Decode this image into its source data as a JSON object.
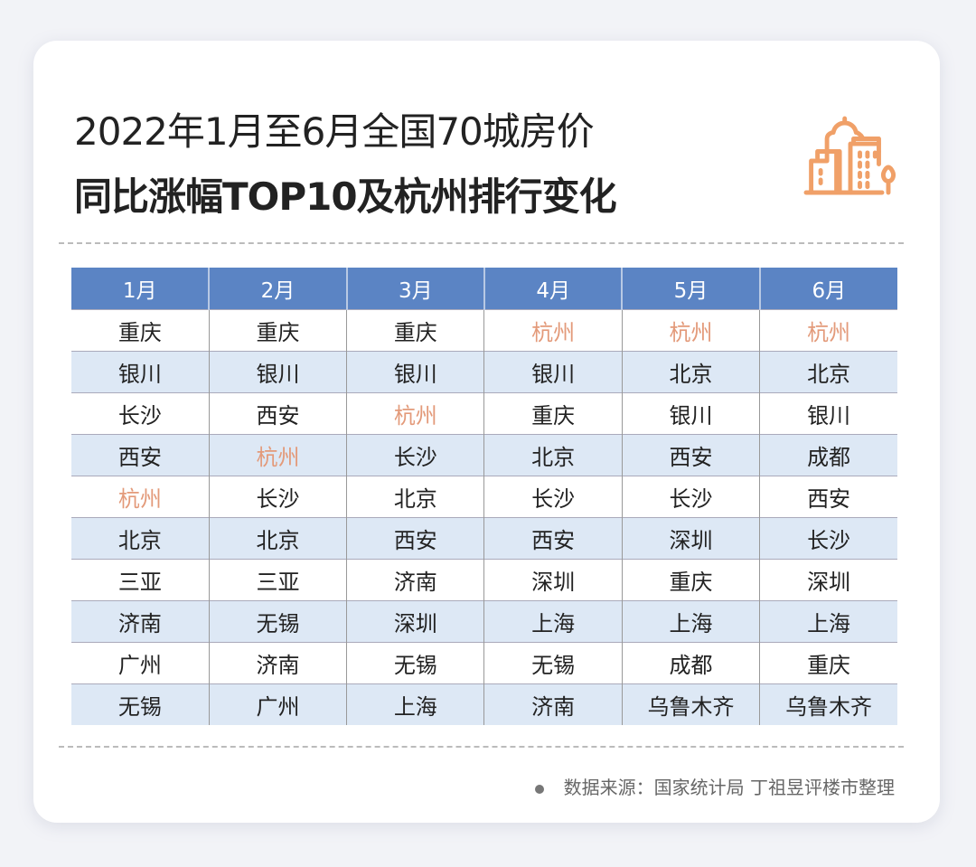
{
  "title_line1": "2022年1月至6月全国70城房价",
  "title_line2": "同比涨幅TOP10及杭州排行变化",
  "icon": "city-buildings-icon",
  "watermark": "丁祖昱评楼市",
  "highlight_city": "杭州",
  "colors": {
    "header": "#5b84c4",
    "alt_row": "#dde8f5",
    "highlight": "#e39a7a",
    "icon": "#f0a068"
  },
  "table": {
    "headers": [
      "1月",
      "2月",
      "3月",
      "4月",
      "5月",
      "6月"
    ],
    "rows": [
      [
        "重庆",
        "重庆",
        "重庆",
        "杭州",
        "杭州",
        "杭州"
      ],
      [
        "银川",
        "银川",
        "银川",
        "银川",
        "北京",
        "北京"
      ],
      [
        "长沙",
        "西安",
        "杭州",
        "重庆",
        "银川",
        "银川"
      ],
      [
        "西安",
        "杭州",
        "长沙",
        "北京",
        "西安",
        "成都"
      ],
      [
        "杭州",
        "长沙",
        "北京",
        "长沙",
        "长沙",
        "西安"
      ],
      [
        "北京",
        "北京",
        "西安",
        "西安",
        "深圳",
        "长沙"
      ],
      [
        "三亚",
        "三亚",
        "济南",
        "深圳",
        "重庆",
        "深圳"
      ],
      [
        "济南",
        "无锡",
        "深圳",
        "上海",
        "上海",
        "上海"
      ],
      [
        "广州",
        "济南",
        "无锡",
        "无锡",
        "成都",
        "重庆"
      ],
      [
        "无锡",
        "广州",
        "上海",
        "济南",
        "乌鲁木齐",
        "乌鲁木齐"
      ]
    ]
  },
  "footer": "数据来源：国家统计局 丁祖昱评楼市整理"
}
